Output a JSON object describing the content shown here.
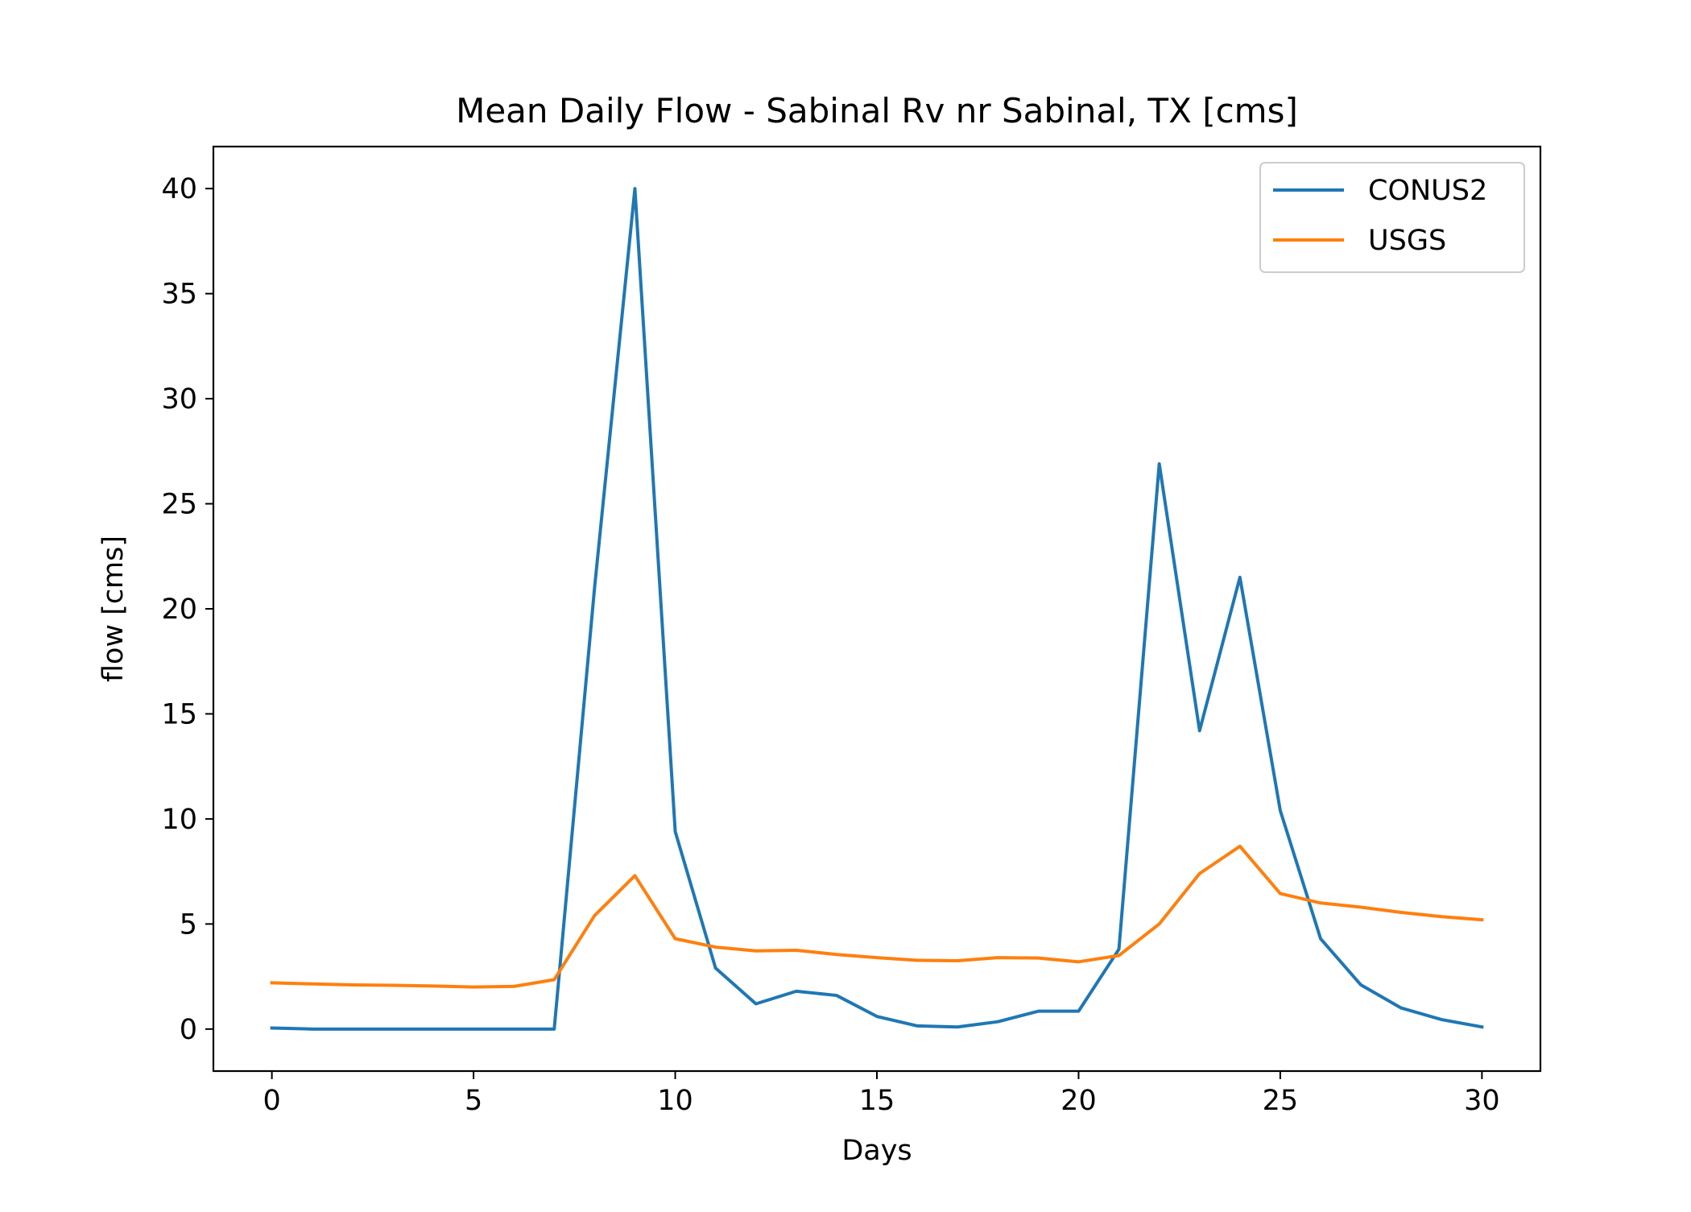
{
  "chart_data": {
    "type": "line",
    "title": "Mean Daily Flow - Sabinal Rv nr Sabinal, TX [cms]",
    "xlabel": "Days",
    "ylabel": "flow [cms]",
    "xlim": [
      -1.45,
      31.45
    ],
    "ylim": [
      -2,
      42
    ],
    "xticks": [
      0,
      5,
      10,
      15,
      20,
      25,
      30
    ],
    "yticks": [
      0,
      5,
      10,
      15,
      20,
      25,
      30,
      35,
      40
    ],
    "grid": false,
    "legend_position": "top-right",
    "x": [
      0,
      1,
      2,
      3,
      4,
      5,
      6,
      7,
      8,
      9,
      10,
      11,
      12,
      13,
      14,
      15,
      16,
      17,
      18,
      19,
      20,
      21,
      22,
      23,
      24,
      25,
      26,
      27,
      28,
      29,
      30
    ],
    "series": [
      {
        "name": "CONUS2",
        "color": "#1f77b4",
        "values": [
          0.05,
          0.0,
          0.0,
          0.0,
          0.0,
          0.0,
          0.0,
          0.0,
          21.0,
          40.0,
          9.4,
          2.9,
          1.2,
          1.8,
          1.6,
          0.6,
          0.15,
          0.1,
          0.35,
          0.85,
          0.85,
          3.8,
          26.9,
          14.2,
          21.5,
          10.4,
          4.3,
          2.1,
          1.0,
          0.45,
          0.1
        ]
      },
      {
        "name": "USGS",
        "color": "#ff7f0e",
        "values": [
          2.2,
          2.15,
          2.1,
          2.08,
          2.05,
          2.0,
          2.03,
          2.35,
          5.4,
          7.3,
          4.3,
          3.9,
          3.72,
          3.75,
          3.55,
          3.4,
          3.27,
          3.25,
          3.4,
          3.38,
          3.2,
          3.5,
          5.0,
          7.4,
          8.7,
          6.45,
          6.0,
          5.8,
          5.55,
          5.35,
          5.2
        ]
      }
    ]
  }
}
